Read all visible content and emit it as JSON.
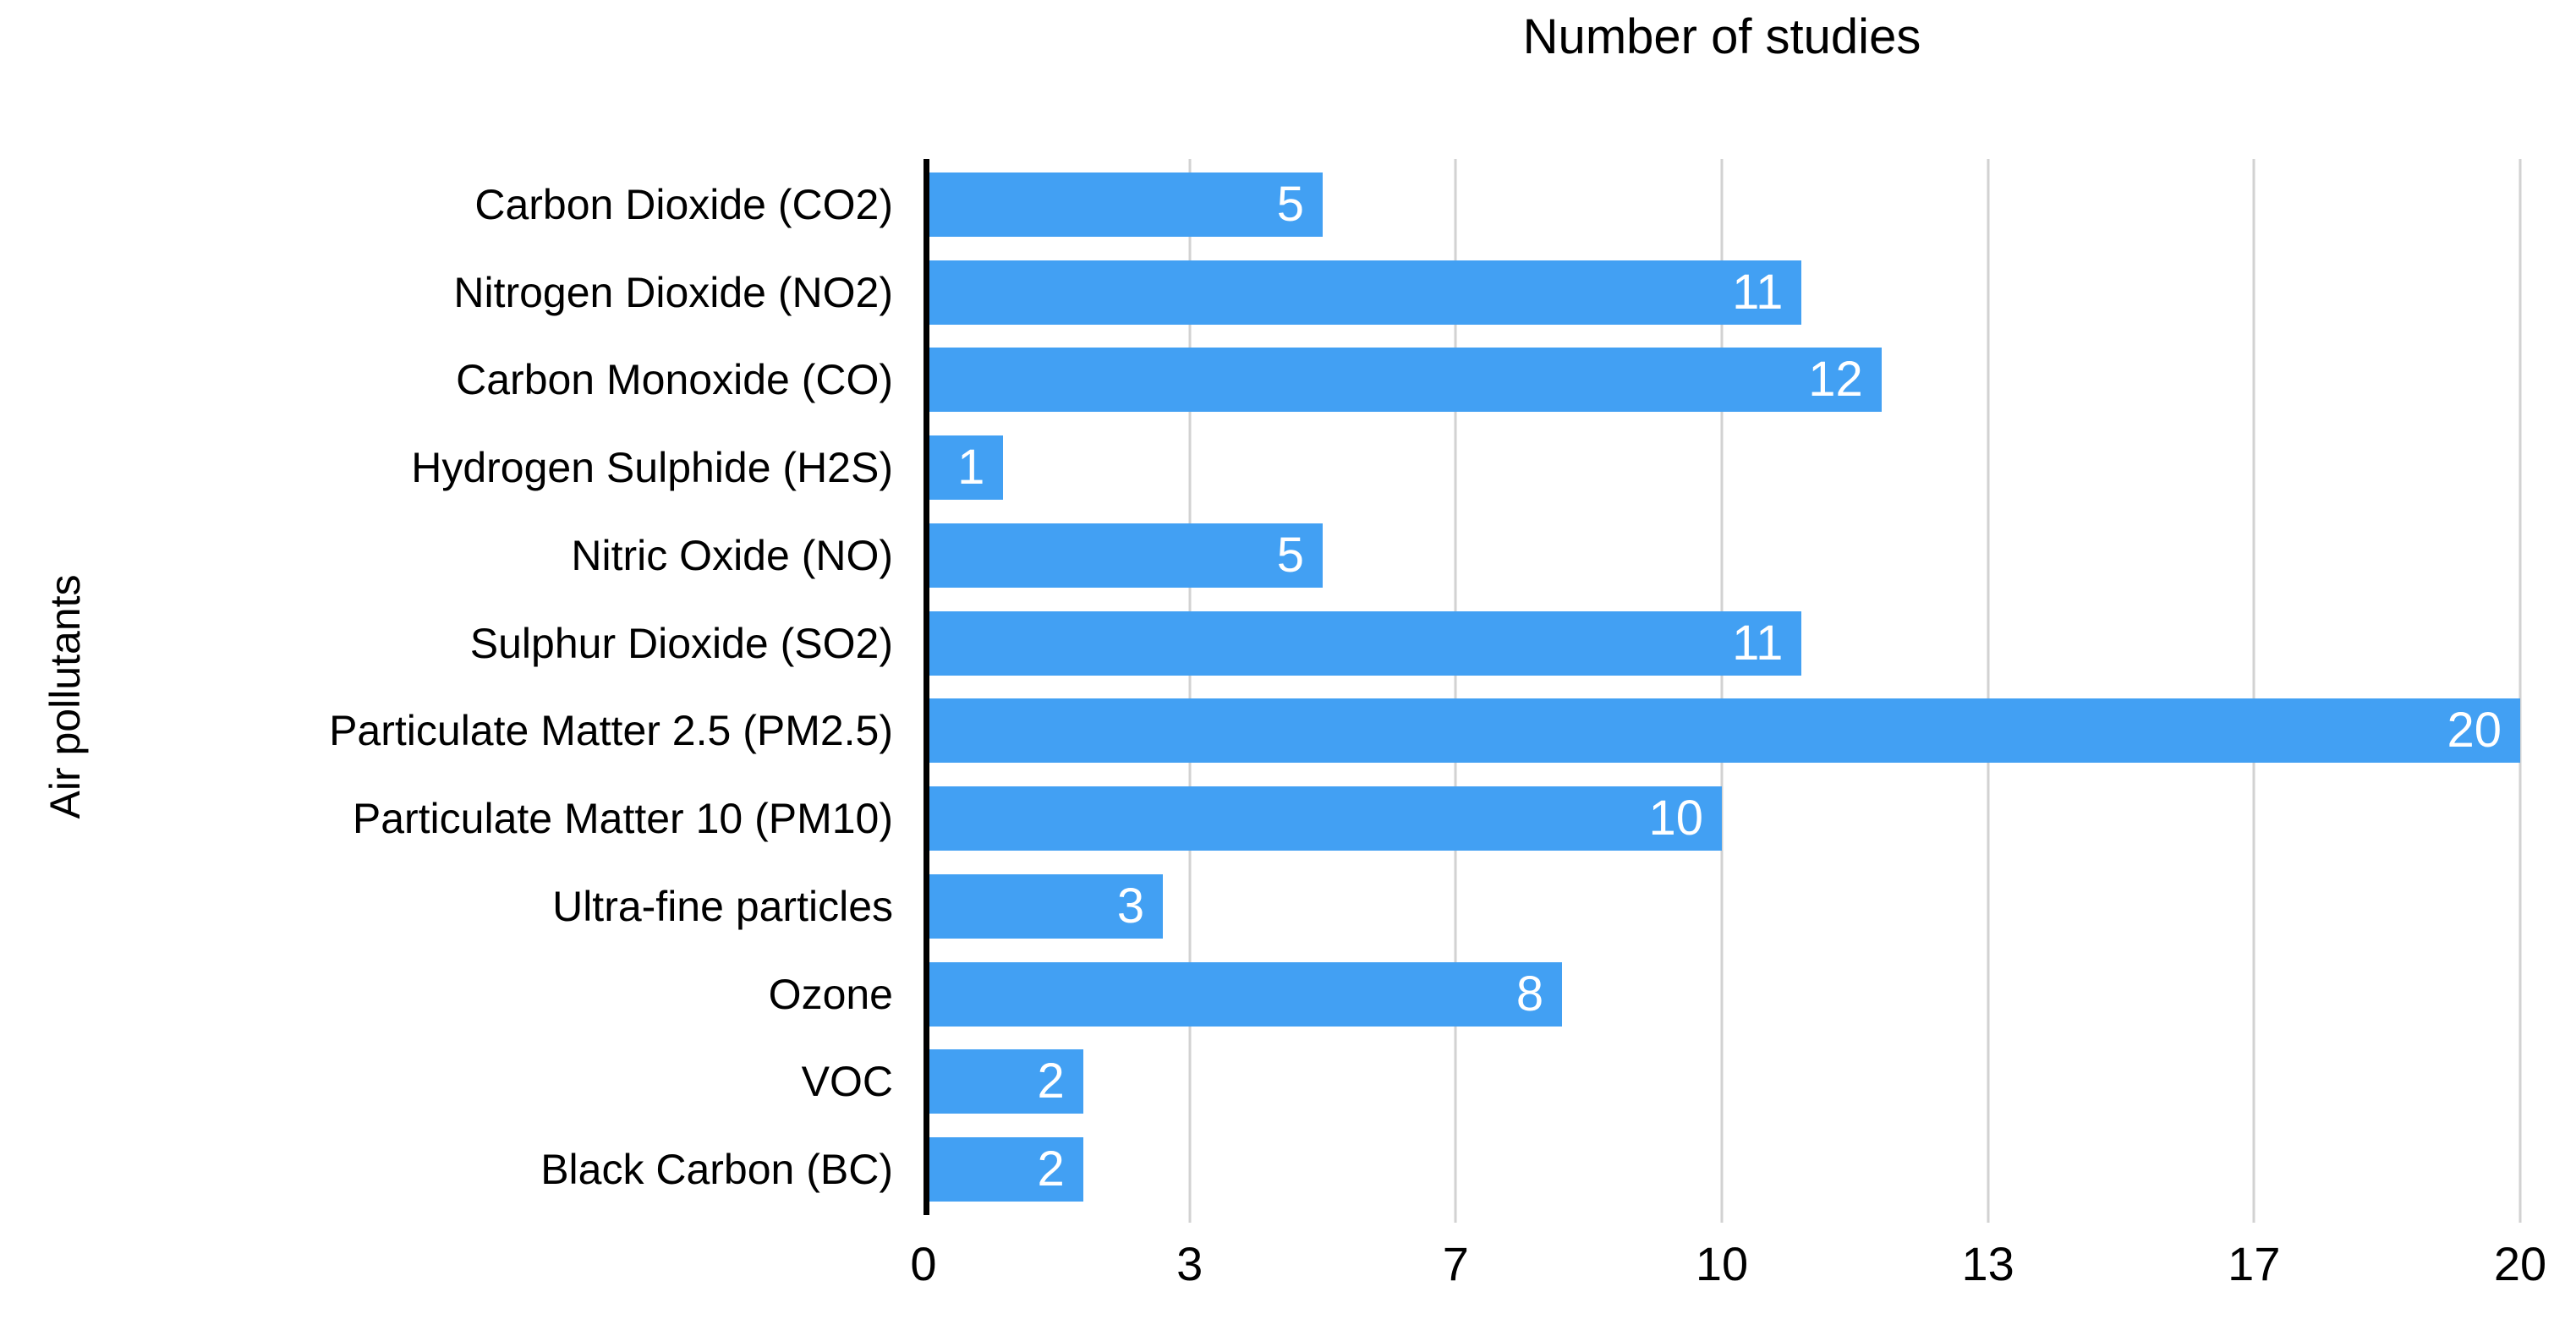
{
  "chart_data": {
    "type": "bar",
    "orientation": "horizontal",
    "title": "Number of studies",
    "xlabel": "",
    "ylabel": "Air pollutants",
    "categories": [
      "Carbon Dioxide (CO2)",
      "Nitrogen Dioxide (NO2)",
      "Carbon Monoxide (CO)",
      "Hydrogen Sulphide (H2S)",
      "Nitric Oxide (NO)",
      "Sulphur Dioxide (SO2)",
      "Particulate Matter 2.5 (PM2.5)",
      "Particulate Matter 10 (PM10)",
      "Ultra-fine particles",
      "Ozone",
      "VOC",
      "Black Carbon (BC)"
    ],
    "values": [
      5,
      11,
      12,
      1,
      5,
      11,
      20,
      10,
      3,
      8,
      2,
      2
    ],
    "value_labels": [
      "5",
      "11",
      "12",
      "1",
      "5",
      "11",
      "20",
      "10",
      "3",
      "8",
      "2",
      "2"
    ],
    "xlim": [
      0,
      20
    ],
    "x_tick_labels": [
      "0",
      "3",
      "7",
      "10",
      "13",
      "17",
      "20"
    ],
    "x_tick_values": [
      0,
      3.3333,
      6.6667,
      10,
      13.3333,
      16.6667,
      20
    ],
    "grid": true,
    "legend": false,
    "colors": {
      "bar": "#42A0F3",
      "value_label": "#FFFFFF",
      "gridline": "#D2D2D2",
      "axis_line": "#000000",
      "text": "#000000",
      "background": "#FFFFFF"
    }
  }
}
